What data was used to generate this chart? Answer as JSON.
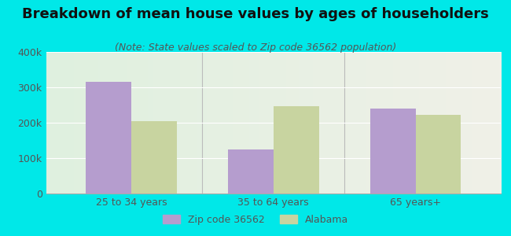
{
  "title": "Breakdown of mean house values by ages of householders",
  "subtitle": "(Note: State values scaled to Zip code 36562 population)",
  "categories": [
    "25 to 34 years",
    "35 to 64 years",
    "65 years+"
  ],
  "zip_values": [
    315000,
    125000,
    240000
  ],
  "state_values": [
    205000,
    247000,
    222000
  ],
  "zip_color": "#b59dce",
  "state_color": "#c8d4a0",
  "background_outer": "#00e8e8",
  "background_inner": "#dff0df",
  "background_inner_right": "#f0f0e8",
  "ylim": [
    0,
    400000
  ],
  "yticks": [
    0,
    100000,
    200000,
    300000,
    400000
  ],
  "ytick_labels": [
    "0",
    "100k",
    "200k",
    "300k",
    "400k"
  ],
  "legend_zip_label": "Zip code 36562",
  "legend_state_label": "Alabama",
  "bar_width": 0.32,
  "title_fontsize": 13,
  "subtitle_fontsize": 9,
  "tick_fontsize": 9,
  "legend_fontsize": 9,
  "title_color": "#111111",
  "subtitle_color": "#555555",
  "tick_color": "#555555"
}
